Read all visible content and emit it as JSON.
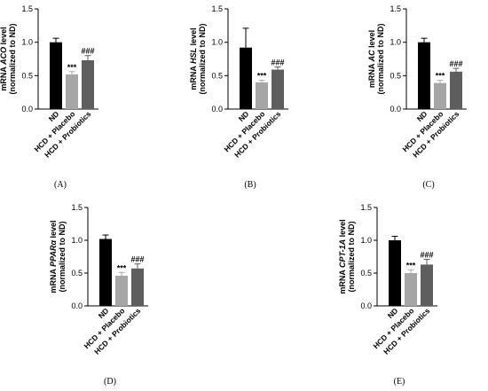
{
  "chart_data": [
    {
      "type": "bar",
      "panel_label": "(A)",
      "ylabel": {
        "prefix": "mRNA ",
        "gene": "ACO",
        "suffix": " level",
        "line2": "(normalized to ND)"
      },
      "categories": [
        "ND",
        "HCD + Placebo",
        "HCD + Probiotics"
      ],
      "values": [
        1.0,
        0.52,
        0.73
      ],
      "errors": [
        0.06,
        0.04,
        0.07
      ],
      "significance": [
        "",
        "***",
        "###"
      ],
      "ylim": [
        0,
        1.5
      ],
      "yticks": [
        0.0,
        0.5,
        1.0,
        1.5
      ],
      "ytick_labels": [
        "0.0",
        "0.5",
        "1.0",
        "1.5"
      ]
    },
    {
      "type": "bar",
      "panel_label": "(B)",
      "ylabel": {
        "prefix": "mRNA ",
        "gene": "HSL",
        "suffix": " level",
        "line2": "(normalized to ND)"
      },
      "categories": [
        "ND",
        "HCD + Placebo",
        "HCD + Probiotics"
      ],
      "values": [
        0.92,
        0.4,
        0.59
      ],
      "errors": [
        0.29,
        0.03,
        0.04
      ],
      "significance": [
        "",
        "***",
        "###"
      ],
      "ylim": [
        0,
        1.5
      ],
      "yticks": [
        0.0,
        0.5,
        1.0,
        1.5
      ],
      "ytick_labels": [
        "0.0",
        "0.5",
        "1.0",
        "1.5"
      ]
    },
    {
      "type": "bar",
      "panel_label": "(C)",
      "ylabel": {
        "prefix": "mRNA ",
        "gene": "AC",
        "suffix": " level",
        "line2": "(normalized to ND)"
      },
      "categories": [
        "ND",
        "HCD + Placebo",
        "HCD + Probiotics"
      ],
      "values": [
        1.0,
        0.39,
        0.56
      ],
      "errors": [
        0.06,
        0.04,
        0.05
      ],
      "significance": [
        "",
        "***",
        "###"
      ],
      "ylim": [
        0,
        1.5
      ],
      "yticks": [
        0.0,
        0.5,
        1.0,
        1.5
      ],
      "ytick_labels": [
        "0.0",
        "0.5",
        "1.0",
        "1.5"
      ]
    },
    {
      "type": "bar",
      "panel_label": "(D)",
      "ylabel": {
        "prefix": "mRNA ",
        "gene": "PPARα",
        "suffix": " level",
        "line2": "(normalized to ND)"
      },
      "categories": [
        "ND",
        "HCD + Placebo",
        "HCD + Probiotics"
      ],
      "values": [
        1.02,
        0.46,
        0.57
      ],
      "errors": [
        0.06,
        0.05,
        0.07
      ],
      "significance": [
        "",
        "***",
        "###"
      ],
      "ylim": [
        0,
        1.5
      ],
      "yticks": [
        0.0,
        0.5,
        1.0,
        1.5
      ],
      "ytick_labels": [
        "0.0",
        "0.5",
        "1.0",
        "1.5"
      ]
    },
    {
      "type": "bar",
      "panel_label": "(E)",
      "ylabel": {
        "prefix": "mRNA ",
        "gene": "CPT-1A",
        "suffix": " level",
        "line2": "(normalized to ND)"
      },
      "categories": [
        "ND",
        "HCD + Placebo",
        "HCD + Probiotics"
      ],
      "values": [
        1.0,
        0.5,
        0.63
      ],
      "errors": [
        0.06,
        0.05,
        0.08
      ],
      "significance": [
        "",
        "***",
        "###"
      ],
      "ylim": [
        0,
        1.5
      ],
      "yticks": [
        0.0,
        0.5,
        1.0,
        1.5
      ],
      "ytick_labels": [
        "0.0",
        "0.5",
        "1.0",
        "1.5"
      ]
    }
  ],
  "colors": {
    "bars": [
      "#000000",
      "#a6a6a6",
      "#5e5e5e"
    ],
    "axis": "#000000"
  }
}
